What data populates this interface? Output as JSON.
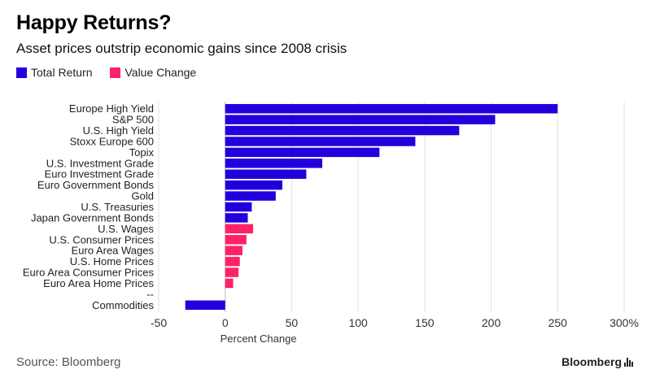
{
  "header": {
    "title": "Happy Returns?",
    "subtitle": "Asset prices outstrip economic gains since 2008 crisis"
  },
  "legend": [
    {
      "label": "Total Return",
      "color": "#2200dd"
    },
    {
      "label": "Value Change",
      "color": "#ff2268"
    }
  ],
  "footer": {
    "source": "Source: Bloomberg",
    "brand": "Bloomberg"
  },
  "chart_data": {
    "type": "bar",
    "orientation": "horizontal",
    "xlabel": "Percent Change",
    "xlim": [
      -50,
      300
    ],
    "xticks": [
      -50,
      0,
      50,
      100,
      150,
      200,
      250,
      300
    ],
    "xtick_labels": [
      "-50",
      "0",
      "50",
      "100",
      "150",
      "200",
      "250",
      "300%"
    ],
    "grid": "vertical",
    "legend_position": "top-left",
    "series_colors": {
      "Total Return": "#2200dd",
      "Value Change": "#ff2268"
    },
    "categories": [
      "Europe High Yield",
      "S&P 500",
      "U.S. High Yield",
      "Stoxx Europe 600",
      "Topix",
      "U.S. Investment Grade",
      "Euro Investment Grade",
      "Euro Government Bonds",
      "Gold",
      "U.S. Treasuries",
      "Japan Government Bonds",
      "U.S. Wages",
      "U.S. Consumer Prices",
      "Euro Area Wages",
      "U.S. Home Prices",
      "Euro Area Consumer Prices",
      "Euro Area Home Prices",
      "--",
      "Commodities"
    ],
    "values": [
      250,
      203,
      176,
      143,
      116,
      73,
      61,
      43,
      38,
      20,
      17,
      21,
      16,
      13,
      11,
      10,
      6,
      null,
      -30
    ],
    "series_membership": [
      "Total Return",
      "Total Return",
      "Total Return",
      "Total Return",
      "Total Return",
      "Total Return",
      "Total Return",
      "Total Return",
      "Total Return",
      "Total Return",
      "Total Return",
      "Value Change",
      "Value Change",
      "Value Change",
      "Value Change",
      "Value Change",
      "Value Change",
      null,
      "Total Return"
    ]
  }
}
